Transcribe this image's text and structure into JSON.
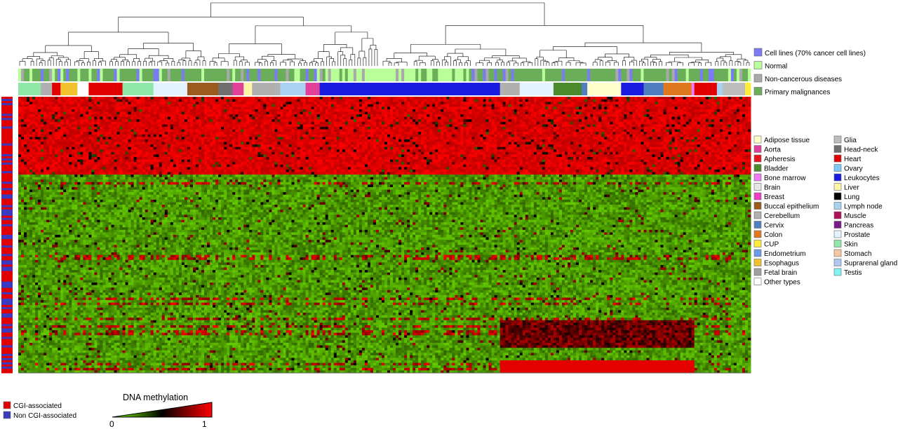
{
  "chart_data": {
    "type": "heatmap",
    "value_range": [
      0,
      1
    ],
    "colorbar": {
      "title": "DNA methylation",
      "min_label": "0",
      "max_label": "1",
      "colors": [
        "#7CFC00",
        "#000000",
        "#FF0000"
      ]
    },
    "column_dendrogram": true,
    "high_methylation_block_fraction": 0.28,
    "sample_groups": [
      {
        "label": "Cell lines (70% cancer cell lines)",
        "color": "#7B7BF5"
      },
      {
        "label": "Normal",
        "color": "#B8FF9A"
      },
      {
        "label": "Non-cancerous diseases",
        "color": "#A9A9A9"
      },
      {
        "label": "Primary malignances",
        "color": "#6BAE5A"
      }
    ],
    "tissue_types": [
      {
        "label": "Adipose tissue",
        "color": "#FFFFCC"
      },
      {
        "label": "Aorta",
        "color": "#E0409A"
      },
      {
        "label": "Apheresis",
        "color": "#E8141B"
      },
      {
        "label": "Bladder",
        "color": "#4A8A2A"
      },
      {
        "label": "Bone marrow",
        "color": "#F07CF0"
      },
      {
        "label": "Brain",
        "color": "#E6E6E6"
      },
      {
        "label": "Breast",
        "color": "#EE3FC9"
      },
      {
        "label": "Buccal epithelium",
        "color": "#9B5A1E"
      },
      {
        "label": "Cerebellum",
        "color": "#B0B0B0"
      },
      {
        "label": "Cervix",
        "color": "#4F7FC0"
      },
      {
        "label": "Colon",
        "color": "#E07820"
      },
      {
        "label": "CUP",
        "color": "#FFEB3B"
      },
      {
        "label": "Endometrium",
        "color": "#6A9BE8"
      },
      {
        "label": "Esophagus",
        "color": "#F2C12E"
      },
      {
        "label": "Fetal brain",
        "color": "#A0A0A0"
      },
      {
        "label": "Other types",
        "color": "#FFFFFF"
      },
      {
        "label": "Glia",
        "color": "#BDBDBD"
      },
      {
        "label": "Head-neck",
        "color": "#6E6E6E"
      },
      {
        "label": "Heart",
        "color": "#E00000"
      },
      {
        "label": "Ovary",
        "color": "#7FC8F5"
      },
      {
        "label": "Leukocytes",
        "color": "#1A1AE0"
      },
      {
        "label": "Liver",
        "color": "#FFF4A8"
      },
      {
        "label": "Lung",
        "color": "#000000"
      },
      {
        "label": "Lymph node",
        "color": "#A8D2F0"
      },
      {
        "label": "Muscle",
        "color": "#B0105A"
      },
      {
        "label": "Pancreas",
        "color": "#7A1B8A"
      },
      {
        "label": "Prostate",
        "color": "#E3F2FF"
      },
      {
        "label": "Skin",
        "color": "#8FE8A8"
      },
      {
        "label": "Stomach",
        "color": "#F5C8A0"
      },
      {
        "label": "Suprarenal gland",
        "color": "#B0C8F0"
      },
      {
        "label": "Testis",
        "color": "#7FF5F5"
      }
    ],
    "row_annotation": [
      {
        "label": "CGI-associated",
        "color": "#E00000"
      },
      {
        "label": "Non CGI-associated",
        "color": "#3A3AC0"
      }
    ]
  }
}
